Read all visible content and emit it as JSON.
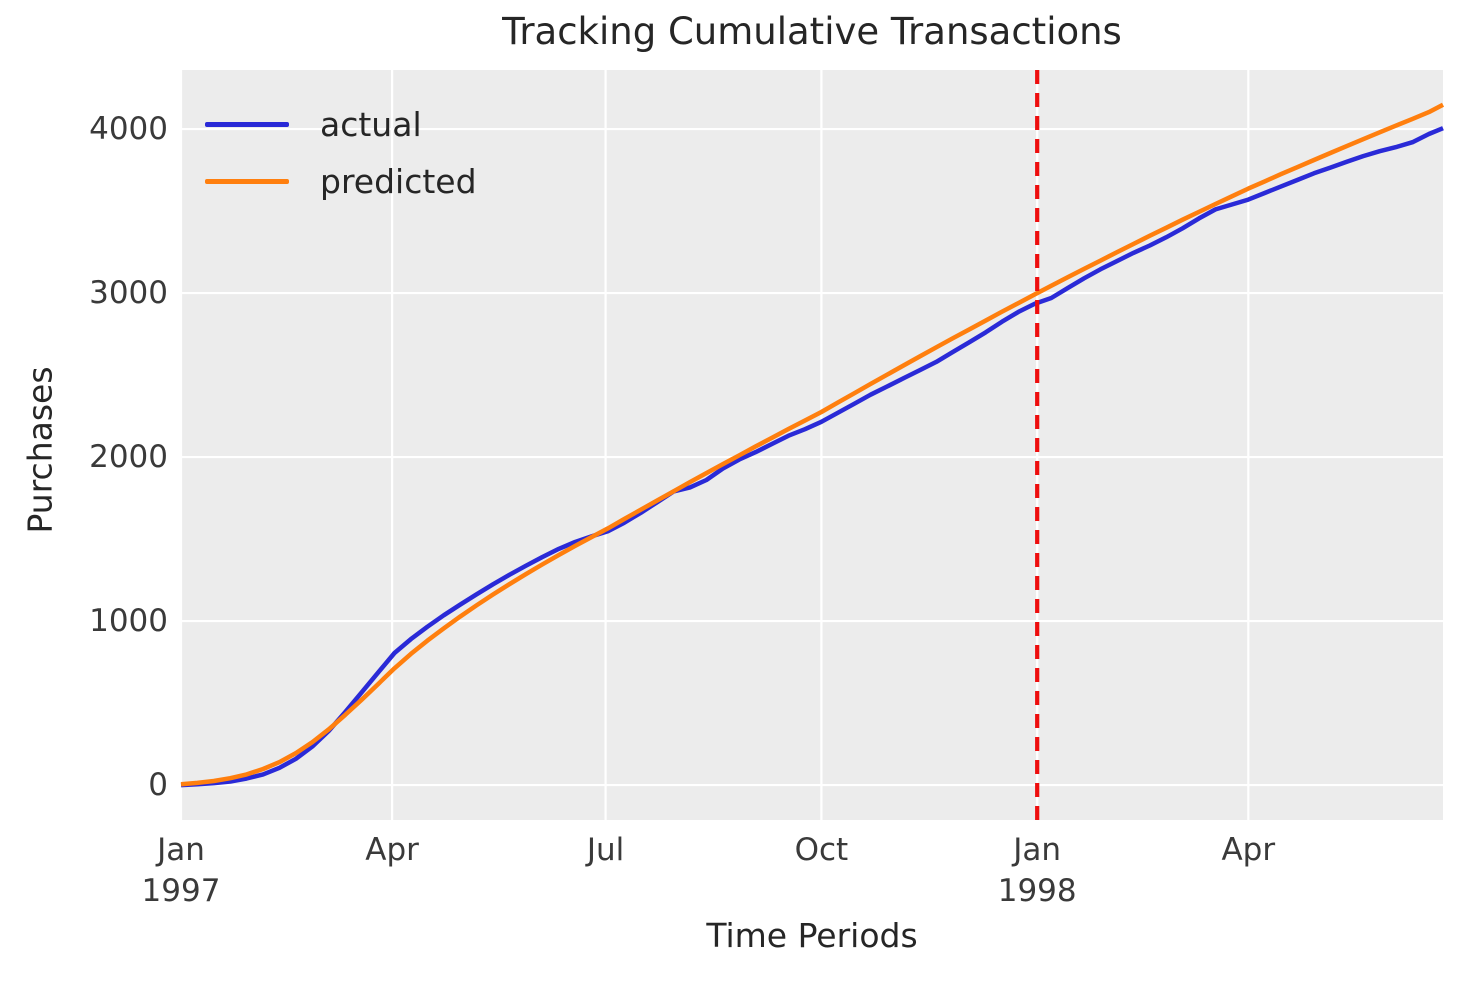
{
  "chart_data": {
    "type": "line",
    "title": "Tracking Cumulative Transactions",
    "xlabel": "Time Periods",
    "ylabel": "Purchases",
    "x_unit": "days since 1997-01-01",
    "xlim": [
      0,
      538
    ],
    "ylim": [
      -213,
      4360
    ],
    "grid": true,
    "legend_position": "upper left",
    "plot_background": "#ececec",
    "grid_color": "#ffffff",
    "x_ticks": [
      {
        "day": 0,
        "label": "Jan",
        "year": "1997"
      },
      {
        "day": 90,
        "label": "Apr",
        "year": ""
      },
      {
        "day": 181,
        "label": "Jul",
        "year": ""
      },
      {
        "day": 273,
        "label": "Oct",
        "year": ""
      },
      {
        "day": 365,
        "label": "Jan",
        "year": "1998"
      },
      {
        "day": 455,
        "label": "Apr",
        "year": ""
      }
    ],
    "y_ticks": [
      0,
      1000,
      2000,
      3000,
      4000
    ],
    "x": [
      0,
      7,
      14,
      21,
      28,
      35,
      42,
      49,
      56,
      63,
      70,
      77,
      84,
      91,
      98,
      105,
      112,
      119,
      126,
      133,
      140,
      147,
      154,
      161,
      168,
      175,
      182,
      189,
      196,
      203,
      210,
      217,
      224,
      231,
      238,
      245,
      252,
      259,
      266,
      273,
      280,
      287,
      294,
      301,
      308,
      315,
      322,
      329,
      336,
      343,
      350,
      357,
      364,
      371,
      378,
      385,
      392,
      399,
      406,
      413,
      420,
      427,
      434,
      441,
      448,
      455,
      462,
      469,
      476,
      483,
      490,
      497,
      504,
      511,
      518,
      525,
      532,
      538
    ],
    "series": [
      {
        "name": "actual",
        "color": "#2a2ad7",
        "values": [
          0,
          5,
          12,
          22,
          40,
          65,
          105,
          160,
          235,
          330,
          445,
          565,
          685,
          805,
          890,
          965,
          1035,
          1100,
          1163,
          1224,
          1282,
          1337,
          1390,
          1440,
          1482,
          1516,
          1548,
          1600,
          1660,
          1725,
          1790,
          1815,
          1860,
          1930,
          1985,
          2030,
          2080,
          2130,
          2170,
          2215,
          2270,
          2325,
          2380,
          2430,
          2480,
          2530,
          2580,
          2640,
          2700,
          2760,
          2825,
          2885,
          2935,
          2970,
          3030,
          3090,
          3145,
          3195,
          3245,
          3290,
          3340,
          3395,
          3455,
          3510,
          3540,
          3570,
          3610,
          3650,
          3690,
          3730,
          3765,
          3800,
          3835,
          3865,
          3890,
          3920,
          3970,
          4005
        ]
      },
      {
        "name": "predicted",
        "color": "#ff7f0e",
        "values": [
          5,
          13,
          25,
          42,
          65,
          98,
          140,
          195,
          262,
          340,
          428,
          520,
          615,
          712,
          800,
          880,
          955,
          1027,
          1096,
          1162,
          1225,
          1286,
          1345,
          1402,
          1458,
          1512,
          1565,
          1622,
          1679,
          1735,
          1791,
          1847,
          1902,
          1957,
          2011,
          2065,
          2118,
          2171,
          2223,
          2275,
          2332,
          2389,
          2446,
          2502,
          2558,
          2614,
          2669,
          2724,
          2778,
          2832,
          2886,
          2939,
          2992,
          3044,
          3096,
          3147,
          3198,
          3249,
          3299,
          3349,
          3398,
          3447,
          3495,
          3543,
          3590,
          3637,
          3681,
          3725,
          3768,
          3811,
          3854,
          3896,
          3938,
          3980,
          4021,
          4062,
          4103,
          4148
        ]
      }
    ],
    "vline": {
      "day": 365,
      "color": "#ee0e0e",
      "style": "dashed"
    }
  }
}
